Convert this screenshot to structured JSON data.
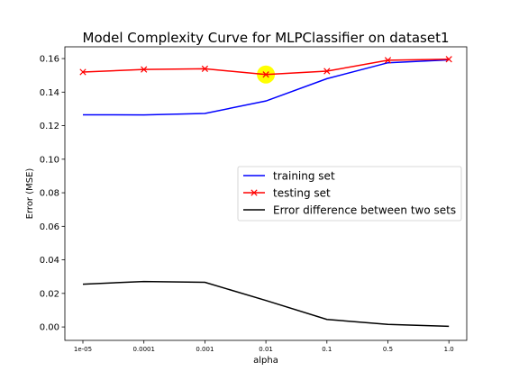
{
  "chart_data": {
    "type": "line",
    "title": "Model Complexity Curve for MLPClassifier on dataset1",
    "xlabel": "alpha",
    "ylabel": "Error (MSE)",
    "categories": [
      "1e-05",
      "0.0001",
      "0.001",
      "0.01",
      "0.1",
      "0.5",
      "1.0"
    ],
    "ylim": [
      -0.008,
      0.167
    ],
    "yticks": [
      0.0,
      0.02,
      0.04,
      0.06,
      0.08,
      0.1,
      0.12,
      0.14,
      0.16
    ],
    "ytick_labels": [
      "0.00",
      "0.02",
      "0.04",
      "0.06",
      "0.08",
      "0.10",
      "0.12",
      "0.14",
      "0.16"
    ],
    "grid": false,
    "legend_position": "center-right",
    "series": [
      {
        "name": "training set",
        "color": "#0000ff",
        "marker": "none",
        "values": [
          0.1265,
          0.1264,
          0.1273,
          0.1347,
          0.148,
          0.1575,
          0.1592
        ]
      },
      {
        "name": "testing set",
        "color": "#ff0000",
        "marker": "x",
        "values": [
          0.152,
          0.1535,
          0.1539,
          0.1505,
          0.1525,
          0.159,
          0.1596
        ]
      },
      {
        "name": "Error difference between two sets",
        "color": "#000000",
        "marker": "none",
        "values": [
          0.0255,
          0.0271,
          0.0266,
          0.0158,
          0.0045,
          0.0015,
          0.0004
        ]
      }
    ],
    "highlight": {
      "category": "0.01",
      "value": 0.1505,
      "color": "#ffff00"
    }
  }
}
